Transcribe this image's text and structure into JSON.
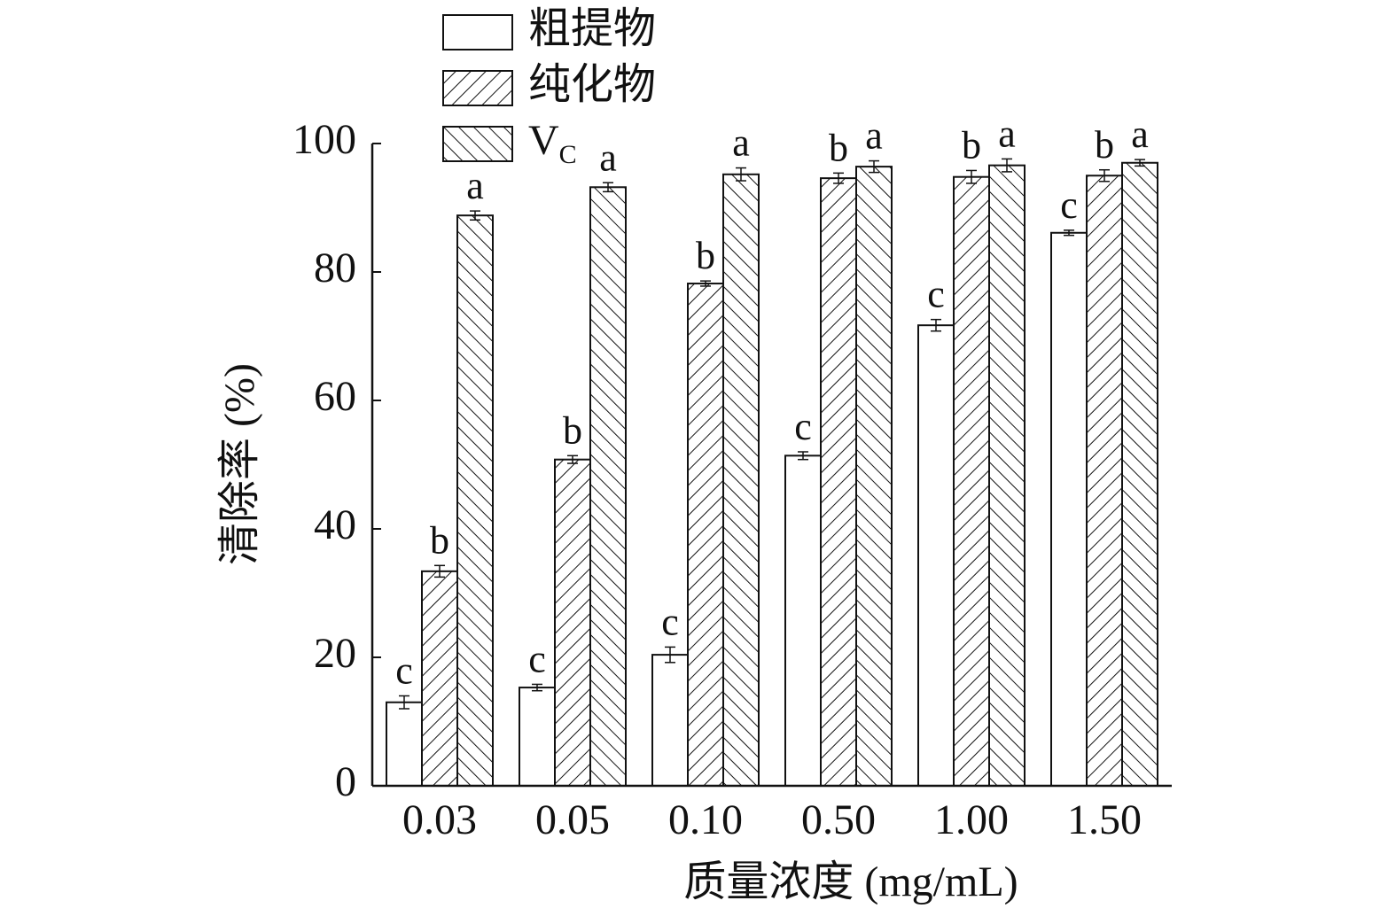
{
  "chart_data": {
    "type": "bar",
    "x_label": "质量浓度 (mg/mL)",
    "y_label": "清除率 (%)",
    "categories": [
      "0.03",
      "0.05",
      "0.10",
      "0.50",
      "1.00",
      "1.50"
    ],
    "series": [
      {
        "name": "粗提物",
        "color": "#ffffff",
        "pattern": "none",
        "values": [
          13.0,
          15.3,
          20.4,
          51.4,
          71.7,
          86.1
        ],
        "errors": [
          1.0,
          0.5,
          1.2,
          0.6,
          0.9,
          0.4
        ],
        "sig_labels": [
          "c",
          "c",
          "c",
          "c",
          "c",
          "c"
        ]
      },
      {
        "name": "纯化物",
        "color": "#ffffff",
        "pattern": "forward",
        "values": [
          33.4,
          50.8,
          78.2,
          94.6,
          94.8,
          95.0
        ],
        "errors": [
          0.9,
          0.6,
          0.4,
          0.8,
          1.0,
          0.9
        ],
        "sig_labels": [
          "b",
          "b",
          "b",
          "b",
          "b",
          "b"
        ]
      },
      {
        "name": "V",
        "name_subscript": "C",
        "color": "#ffffff",
        "pattern": "back",
        "values": [
          88.8,
          93.2,
          95.2,
          96.4,
          96.6,
          97.0
        ],
        "errors": [
          0.7,
          0.7,
          1.0,
          0.9,
          1.0,
          0.5
        ],
        "sig_labels": [
          "a",
          "a",
          "a",
          "a",
          "a",
          "a"
        ]
      }
    ],
    "ylim": [
      0,
      100
    ],
    "yticks": [
      0,
      20,
      40,
      60,
      80,
      100
    ],
    "legend": "top-left"
  }
}
